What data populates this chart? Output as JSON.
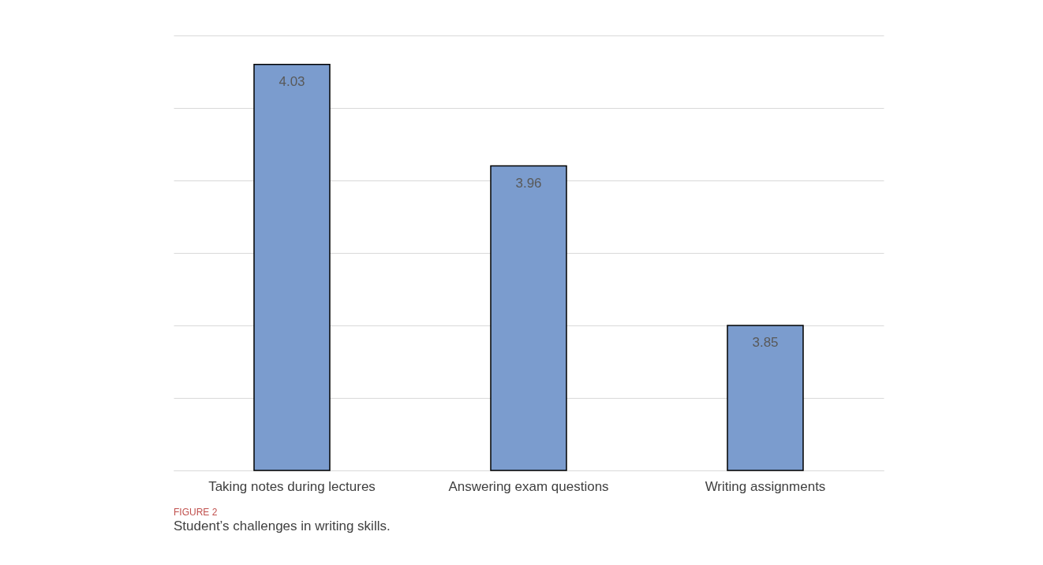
{
  "chart_data": {
    "type": "bar",
    "title": "FIGURE 2",
    "subtitle": "Student’s challenges in writing skills.",
    "categories": [
      "Taking notes during lectures",
      "Answering exam questions",
      "Writing assignments"
    ],
    "values": [
      4.03,
      3.96,
      3.85
    ],
    "color": "#7b9cce",
    "data_labels": true,
    "ylim": [
      3.75,
      4.05
    ],
    "yticks": [
      {
        "value": 3.75,
        "label": null
      },
      {
        "value": 3.8,
        "label": null
      },
      {
        "value": 3.85,
        "label": null
      },
      {
        "value": 3.9,
        "label": null
      },
      {
        "value": 3.95,
        "label": null
      },
      {
        "value": 4.0,
        "label": null
      },
      {
        "value": 4.05,
        "label": null
      }
    ],
    "tick_labels": "x",
    "grid": "y"
  }
}
